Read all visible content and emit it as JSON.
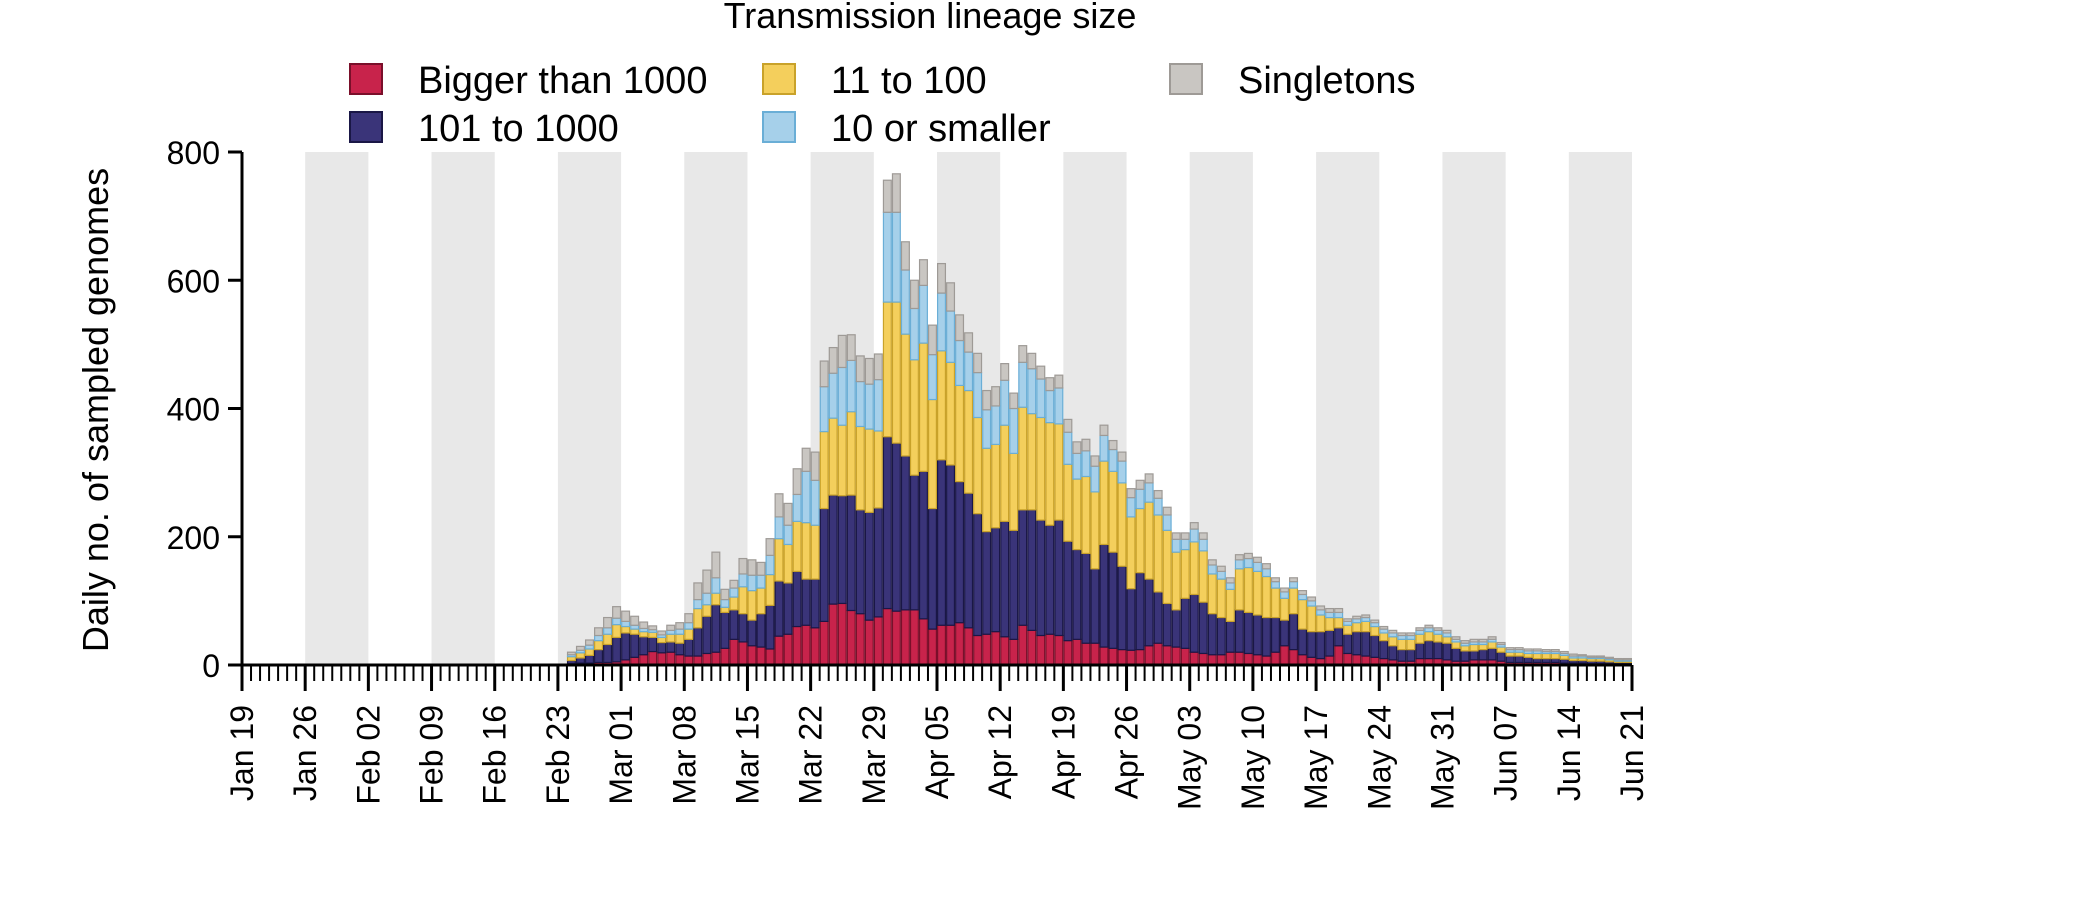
{
  "chart_data": {
    "type": "bar",
    "stacked": true,
    "legend_title": "Transmission lineage size",
    "ylabel": "Daily no. of sampled genomes",
    "xlabel": "",
    "ylim": [
      0,
      800
    ],
    "yticks": [
      0,
      200,
      400,
      600,
      800
    ],
    "x_start": "2020-01-19",
    "x_end": "2020-06-21",
    "xtick_labels": [
      "Jan 19",
      "Jan 26",
      "Feb 02",
      "Feb 09",
      "Feb 16",
      "Feb 23",
      "Mar 01",
      "Mar 08",
      "Mar 15",
      "Mar 22",
      "Mar 29",
      "Apr 05",
      "Apr 12",
      "Apr 19",
      "Apr 26",
      "May 03",
      "May 10",
      "May 17",
      "May 24",
      "May 31",
      "Jun 07",
      "Jun 14",
      "Jun 21"
    ],
    "grid": "alternating weekly shaded bands",
    "legend_position": "top",
    "series": [
      {
        "name": "Bigger than 1000",
        "color": "#c8234b",
        "edge": "#7a0f2a",
        "values": [
          2,
          3,
          3,
          4,
          4,
          5,
          8,
          12,
          16,
          21,
          19,
          20,
          16,
          14,
          14,
          18,
          20,
          26,
          40,
          36,
          30,
          28,
          25,
          45,
          48,
          60,
          62,
          58,
          68,
          95,
          96,
          85,
          80,
          70,
          75,
          88,
          84,
          86,
          86,
          72,
          56,
          62,
          62,
          66,
          58,
          46,
          48,
          52,
          44,
          40,
          62,
          54,
          46,
          48,
          46,
          38,
          40,
          34,
          34,
          28,
          26,
          24,
          23,
          24,
          30,
          34,
          30,
          28,
          26,
          20,
          18,
          16,
          16,
          20,
          20,
          18,
          16,
          14,
          20,
          30,
          24,
          16,
          12,
          10,
          14,
          30,
          18,
          16,
          14,
          12,
          10,
          8,
          6,
          6,
          10,
          10,
          10,
          8,
          6,
          6,
          8,
          8,
          8,
          6,
          4,
          4,
          4,
          4,
          4,
          4,
          3,
          3,
          3,
          2,
          2,
          2,
          2,
          2
        ]
      },
      {
        "name": "101 to 1000",
        "color": "#3a3479",
        "edge": "#1a1746",
        "values": [
          5,
          8,
          12,
          20,
          28,
          38,
          42,
          36,
          28,
          22,
          16,
          16,
          18,
          26,
          44,
          58,
          74,
          56,
          46,
          44,
          40,
          52,
          68,
          86,
          80,
          86,
          72,
          76,
          176,
          170,
          168,
          180,
          162,
          168,
          170,
          268,
          262,
          240,
          210,
          230,
          188,
          258,
          250,
          220,
          210,
          190,
          160,
          162,
          180,
          170,
          180,
          188,
          180,
          170,
          180,
          155,
          140,
          140,
          116,
          160,
          150,
          130,
          96,
          120,
          104,
          80,
          66,
          58,
          78,
          90,
          80,
          64,
          58,
          48,
          66,
          64,
          62,
          60,
          54,
          40,
          56,
          40,
          40,
          42,
          40,
          28,
          30,
          36,
          38,
          34,
          28,
          22,
          18,
          18,
          24,
          28,
          26,
          26,
          20,
          16,
          14,
          16,
          18,
          14,
          10,
          10,
          8,
          6,
          6,
          6,
          6,
          4,
          4,
          4,
          4,
          3,
          2,
          2
        ]
      },
      {
        "name": "11 to 100",
        "color": "#f4cf5c",
        "edge": "#c9a22a",
        "values": [
          6,
          8,
          10,
          14,
          16,
          20,
          10,
          8,
          8,
          8,
          8,
          12,
          14,
          16,
          30,
          18,
          18,
          8,
          20,
          42,
          46,
          40,
          48,
          66,
          60,
          78,
          88,
          84,
          120,
          120,
          110,
          130,
          130,
          130,
          120,
          210,
          220,
          190,
          180,
          200,
          170,
          170,
          160,
          150,
          160,
          150,
          130,
          130,
          150,
          120,
          160,
          150,
          160,
          160,
          150,
          120,
          110,
          120,
          120,
          130,
          126,
          130,
          112,
          100,
          120,
          120,
          114,
          90,
          76,
          82,
          80,
          62,
          60,
          50,
          64,
          70,
          68,
          64,
          46,
          34,
          40,
          46,
          40,
          26,
          20,
          16,
          14,
          14,
          16,
          14,
          12,
          14,
          16,
          16,
          14,
          14,
          12,
          10,
          10,
          8,
          10,
          8,
          10,
          8,
          6,
          6,
          6,
          8,
          8,
          8,
          6,
          4,
          4,
          4,
          4,
          3,
          2,
          2
        ]
      },
      {
        "name": "10 or smaller",
        "color": "#a6d0ea",
        "edge": "#6aaed6",
        "values": [
          3,
          4,
          6,
          8,
          10,
          10,
          8,
          6,
          5,
          4,
          4,
          6,
          8,
          10,
          14,
          18,
          24,
          12,
          14,
          20,
          24,
          20,
          30,
          34,
          30,
          42,
          80,
          70,
          70,
          70,
          90,
          80,
          70,
          70,
          80,
          140,
          140,
          100,
          80,
          90,
          70,
          90,
          80,
          70,
          60,
          70,
          60,
          60,
          70,
          70,
          70,
          70,
          60,
          50,
          56,
          50,
          40,
          40,
          40,
          40,
          34,
          34,
          30,
          30,
          30,
          26,
          24,
          20,
          16,
          20,
          18,
          14,
          12,
          10,
          14,
          14,
          14,
          12,
          10,
          10,
          10,
          8,
          8,
          8,
          8,
          8,
          6,
          6,
          6,
          6,
          6,
          6,
          6,
          6,
          6,
          6,
          6,
          6,
          4,
          4,
          4,
          4,
          4,
          4,
          4,
          4,
          4,
          4,
          3,
          3,
          3,
          3,
          3,
          2,
          2,
          2,
          2,
          2
        ]
      },
      {
        "name": "Singletons",
        "color": "#c9c6c2",
        "edge": "#9e9a96",
        "values": [
          4,
          6,
          8,
          12,
          16,
          18,
          16,
          14,
          10,
          6,
          6,
          8,
          10,
          14,
          26,
          36,
          40,
          16,
          12,
          24,
          24,
          20,
          26,
          36,
          34,
          40,
          36,
          44,
          40,
          40,
          50,
          40,
          40,
          40,
          40,
          50,
          60,
          44,
          44,
          40,
          46,
          46,
          44,
          40,
          30,
          30,
          30,
          30,
          26,
          24,
          26,
          24,
          20,
          20,
          20,
          20,
          18,
          18,
          16,
          16,
          14,
          14,
          14,
          14,
          14,
          12,
          12,
          10,
          10,
          10,
          10,
          8,
          8,
          8,
          8,
          8,
          8,
          8,
          6,
          6,
          6,
          6,
          6,
          6,
          6,
          6,
          4,
          4,
          4,
          4,
          4,
          4,
          4,
          4,
          4,
          4,
          4,
          4,
          4,
          4,
          4,
          4,
          4,
          3,
          3,
          3,
          3,
          3,
          3,
          3,
          3,
          3,
          2,
          2,
          2,
          2,
          2,
          2
        ]
      }
    ],
    "x_first_bar": "2020-02-24"
  }
}
